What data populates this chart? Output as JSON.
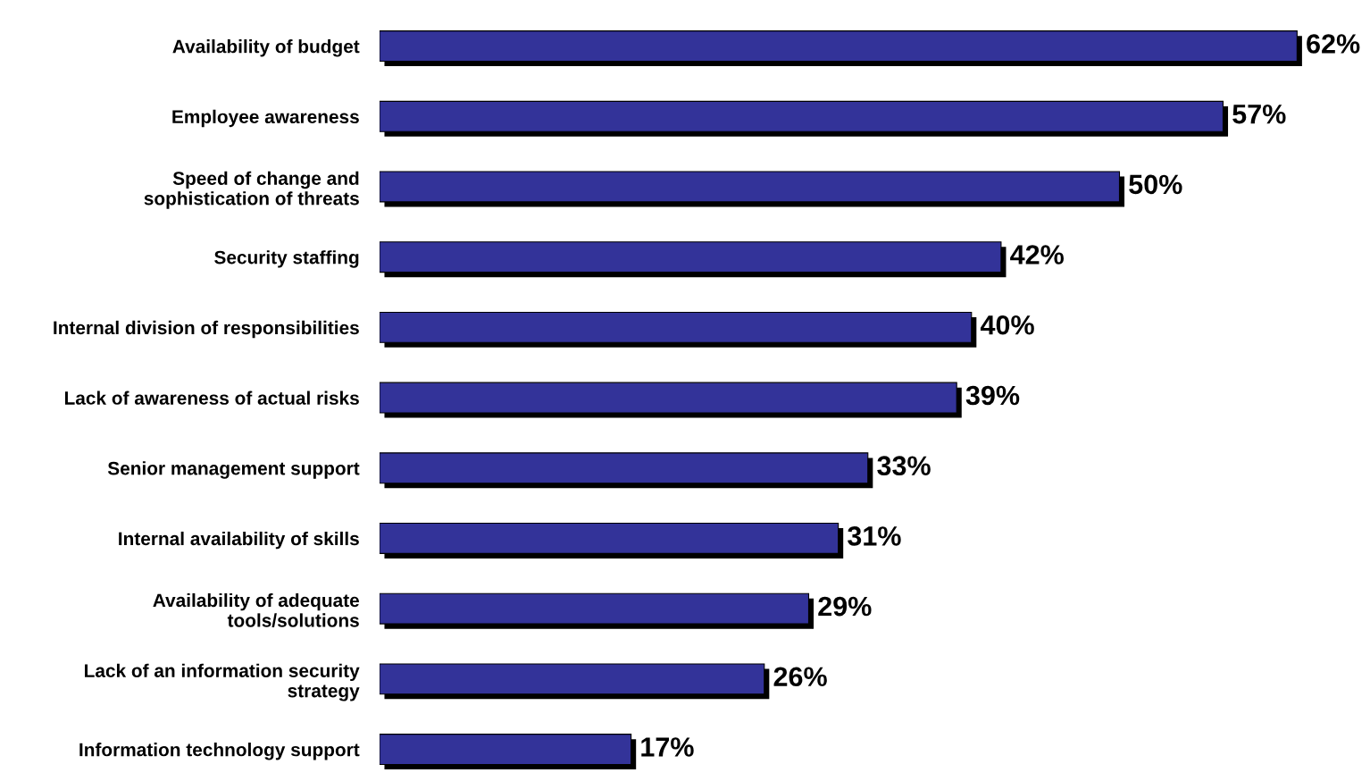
{
  "chart_data": {
    "type": "bar",
    "orientation": "horizontal",
    "categories": [
      "Availability of budget",
      "Employee awareness",
      "Speed of change and\nsophistication of threats",
      "Security staffing",
      "Internal division of responsibilities",
      "Lack of awareness of actual risks",
      "Senior management support",
      "Internal availability of skills",
      "Availability of adequate\ntools/solutions",
      "Lack of an information security\nstrategy",
      "Information technology support"
    ],
    "values": [
      62,
      57,
      50,
      42,
      40,
      39,
      33,
      31,
      29,
      26,
      17
    ],
    "value_labels": [
      "62%",
      "57%",
      "50%",
      "42%",
      "40%",
      "39%",
      "33%",
      "31%",
      "29%",
      "26%",
      "17%"
    ],
    "color": "#333399",
    "grid": false,
    "legend": false
  }
}
